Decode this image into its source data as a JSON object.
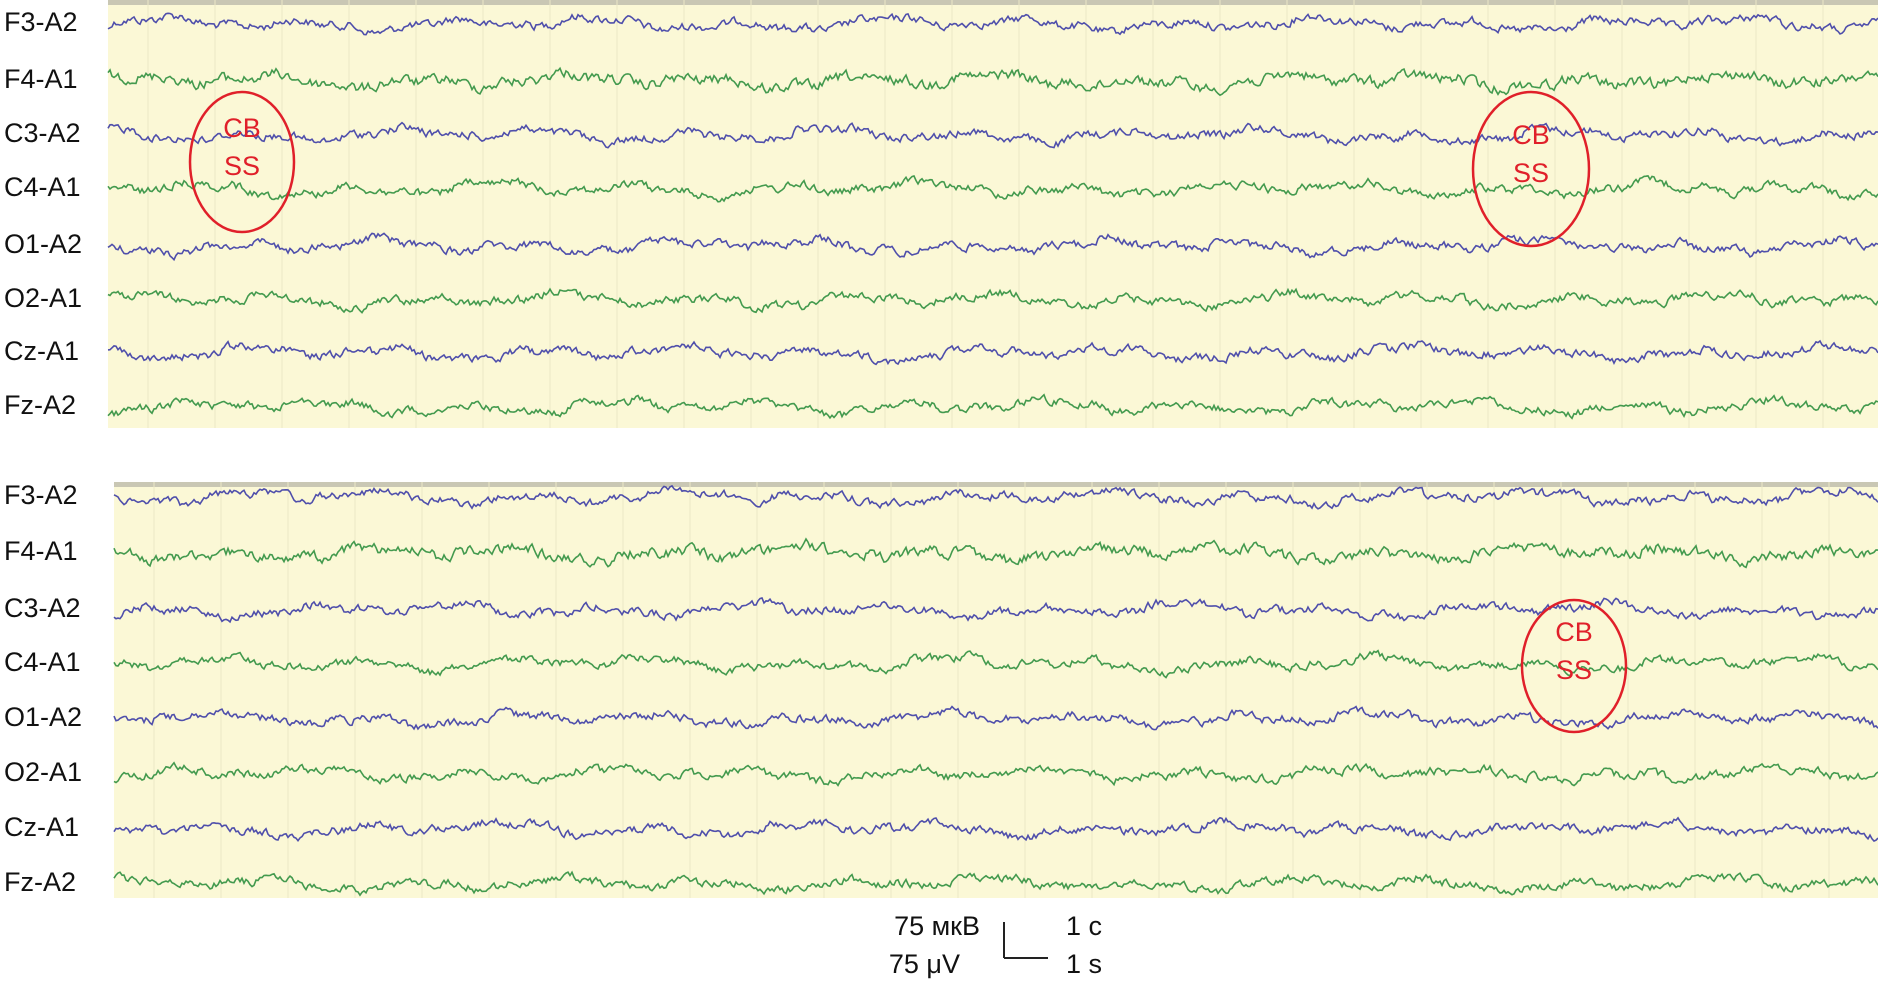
{
  "panels": [
    {
      "channels": [
        "F3-A2",
        "F4-A1",
        "C3-A2",
        "C4-A1",
        "O1-A2",
        "O2-A1",
        "Cz-A1",
        "Fz-A2"
      ],
      "annotations": [
        {
          "lines": [
            "CB",
            "SS"
          ]
        },
        {
          "lines": [
            "CB",
            "SS"
          ]
        }
      ]
    },
    {
      "channels": [
        "F3-A2",
        "F4-A1",
        "C3-A2",
        "C4-A1",
        "O1-A2",
        "O2-A1",
        "Cz-A1",
        "Fz-A2"
      ],
      "annotations": [
        {
          "lines": [
            "CB",
            "SS"
          ]
        }
      ]
    }
  ],
  "scale": {
    "amplitude_ru": "75 мкВ",
    "amplitude_en": "75 μV",
    "time_ru": "1 с",
    "time_en": "1 s"
  }
}
